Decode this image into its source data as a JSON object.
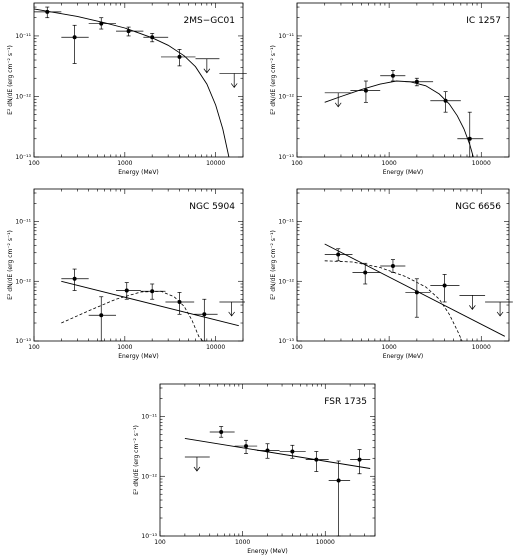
{
  "chart_data": [
    {
      "type": "scatter",
      "title": "2MS−GC01",
      "xlabel": "Energy (MeV)",
      "ylabel": "E² dN/dE (erg cm⁻² s⁻¹)",
      "xscale": "log",
      "yscale": "log",
      "xlim": [
        100,
        20000
      ],
      "ylim": [
        1e-13,
        3.5e-11
      ],
      "xticks": [
        "100",
        "1000",
        "10000"
      ],
      "yticks": [
        "10⁻¹¹",
        "10⁻¹²",
        "10⁻¹³"
      ],
      "points": [
        {
          "x": 140,
          "y": 2.5e-11,
          "xlo": 100,
          "xhi": 200,
          "ylo": 2e-11,
          "yhi": 3e-11
        },
        {
          "x": 280,
          "y": 9.5e-12,
          "xlo": 200,
          "xhi": 400,
          "ylo": 3.5e-12,
          "yhi": 1.5e-11
        },
        {
          "x": 550,
          "y": 1.6e-11,
          "xlo": 400,
          "xhi": 800,
          "ylo": 1.3e-11,
          "yhi": 2e-11
        },
        {
          "x": 1100,
          "y": 1.2e-11,
          "xlo": 800,
          "xhi": 1600,
          "ylo": 1e-11,
          "yhi": 1.4e-11
        },
        {
          "x": 2000,
          "y": 9.5e-12,
          "xlo": 1600,
          "xhi": 3000,
          "ylo": 8e-12,
          "yhi": 1.1e-11
        },
        {
          "x": 4000,
          "y": 4.5e-12,
          "xlo": 2500,
          "xhi": 6000,
          "ylo": 3.2e-12,
          "yhi": 6e-12
        }
      ],
      "upper_limits": [
        {
          "x": 8000,
          "y": 4.2e-12,
          "xlo": 6000,
          "xhi": 11000
        },
        {
          "x": 16000,
          "y": 2.4e-12,
          "xlo": 11000,
          "xhi": 22000
        }
      ],
      "model_solid": [
        [
          100,
          2.8e-11
        ],
        [
          300,
          2.1e-11
        ],
        [
          600,
          1.65e-11
        ],
        [
          1000,
          1.35e-11
        ],
        [
          2000,
          9.3e-12
        ],
        [
          3000,
          7e-12
        ],
        [
          4500,
          4.7e-12
        ],
        [
          6000,
          3.1e-12
        ],
        [
          8000,
          1.6e-12
        ],
        [
          10000,
          7.2e-13
        ],
        [
          12000,
          2.9e-13
        ],
        [
          14000,
          1e-13
        ]
      ],
      "model_dashed": []
    },
    {
      "type": "scatter",
      "title": "IC 1257",
      "xlabel": "Energy (MeV)",
      "ylabel": "E² dN/dE (erg cm⁻² s⁻¹)",
      "xscale": "log",
      "yscale": "log",
      "xlim": [
        100,
        20000
      ],
      "ylim": [
        1e-13,
        3.5e-11
      ],
      "xticks": [
        "100",
        "1000",
        "10000"
      ],
      "yticks": [
        "10⁻¹¹",
        "10⁻¹²",
        "10⁻¹³"
      ],
      "points": [
        {
          "x": 560,
          "y": 1.25e-12,
          "xlo": 380,
          "xhi": 800,
          "ylo": 8e-13,
          "yhi": 1.8e-12
        },
        {
          "x": 1100,
          "y": 2.2e-12,
          "xlo": 800,
          "xhi": 1500,
          "ylo": 1.8e-12,
          "yhi": 2.7e-12
        },
        {
          "x": 2000,
          "y": 1.75e-12,
          "xlo": 1500,
          "xhi": 3000,
          "ylo": 1.5e-12,
          "yhi": 2e-12
        },
        {
          "x": 4100,
          "y": 8.5e-13,
          "xlo": 2800,
          "xhi": 6000,
          "ylo": 5.5e-13,
          "yhi": 1.2e-12
        },
        {
          "x": 7500,
          "y": 2e-13,
          "xlo": 5500,
          "xhi": 10500,
          "ylo": 5e-14,
          "yhi": 5.5e-13
        }
      ],
      "upper_limits": [
        {
          "x": 280,
          "y": 1.15e-12,
          "xlo": 200,
          "xhi": 400
        }
      ],
      "model_solid": [
        [
          200,
          8e-13
        ],
        [
          300,
          1e-12
        ],
        [
          500,
          1.3e-12
        ],
        [
          800,
          1.6e-12
        ],
        [
          1200,
          1.8e-12
        ],
        [
          1700,
          1.75e-12
        ],
        [
          2500,
          1.5e-12
        ],
        [
          3500,
          1.1e-12
        ],
        [
          4500,
          7.5e-13
        ],
        [
          5500,
          4.8e-13
        ],
        [
          6500,
          2.9e-13
        ],
        [
          7500,
          1.6e-13
        ],
        [
          8200,
          1e-13
        ]
      ],
      "model_dashed": []
    },
    {
      "type": "scatter",
      "title": "NGC 5904",
      "xlabel": "Energy (MeV)",
      "ylabel": "E² dN/dE (erg cm⁻² s⁻¹)",
      "xscale": "log",
      "yscale": "log",
      "xlim": [
        100,
        20000
      ],
      "ylim": [
        1e-13,
        3.5e-11
      ],
      "xticks": [
        "100",
        "1000",
        "10000"
      ],
      "yticks": [
        "10⁻¹¹",
        "10⁻¹²",
        "10⁻¹³"
      ],
      "points": [
        {
          "x": 280,
          "y": 1.1e-12,
          "xlo": 200,
          "xhi": 400,
          "ylo": 7e-13,
          "yhi": 1.6e-12
        },
        {
          "x": 550,
          "y": 2.7e-13,
          "xlo": 400,
          "xhi": 800,
          "ylo": 1e-13,
          "yhi": 5.5e-13
        },
        {
          "x": 1050,
          "y": 7e-13,
          "xlo": 800,
          "xhi": 1500,
          "ylo": 5e-13,
          "yhi": 9.5e-13
        },
        {
          "x": 2000,
          "y": 6.8e-13,
          "xlo": 1500,
          "xhi": 2800,
          "ylo": 5e-13,
          "yhi": 9e-13
        },
        {
          "x": 4000,
          "y": 4.5e-13,
          "xlo": 2800,
          "xhi": 5800,
          "ylo": 2.8e-13,
          "yhi": 6.5e-13
        },
        {
          "x": 7500,
          "y": 2.8e-13,
          "xlo": 5800,
          "xhi": 10500,
          "ylo": 1e-13,
          "yhi": 5e-13
        }
      ],
      "upper_limits": [
        {
          "x": 15000,
          "y": 4.5e-13,
          "xlo": 11000,
          "xhi": 21000
        }
      ],
      "model_solid": [
        [
          200,
          1e-12
        ],
        [
          18000,
          1.8e-13
        ]
      ],
      "model_dashed": [
        [
          200,
          2e-13
        ],
        [
          400,
          3.2e-13
        ],
        [
          800,
          5e-13
        ],
        [
          1500,
          6.6e-13
        ],
        [
          2500,
          6.8e-13
        ],
        [
          3500,
          5.5e-13
        ],
        [
          4500,
          3.8e-13
        ],
        [
          5500,
          2.2e-13
        ],
        [
          6500,
          1.2e-13
        ],
        [
          7200,
          8e-14
        ]
      ]
    },
    {
      "type": "scatter",
      "title": "NGC 6656",
      "xlabel": "Energy (MeV)",
      "ylabel": "E² dN/dE (erg cm⁻² s⁻¹)",
      "xscale": "log",
      "yscale": "log",
      "xlim": [
        100,
        20000
      ],
      "ylim": [
        1e-13,
        3.5e-11
      ],
      "xticks": [
        "100",
        "1000",
        "10000"
      ],
      "yticks": [
        "10⁻¹¹",
        "10⁻¹²",
        "10⁻¹³"
      ],
      "points": [
        {
          "x": 280,
          "y": 2.8e-12,
          "xlo": 200,
          "xhi": 400,
          "ylo": 2.2e-12,
          "yhi": 3.5e-12
        },
        {
          "x": 550,
          "y": 1.4e-12,
          "xlo": 400,
          "xhi": 800,
          "ylo": 9e-13,
          "yhi": 2e-12
        },
        {
          "x": 1100,
          "y": 1.8e-12,
          "xlo": 800,
          "xhi": 1500,
          "ylo": 1.4e-12,
          "yhi": 2.3e-12
        },
        {
          "x": 2000,
          "y": 6.5e-13,
          "xlo": 1500,
          "xhi": 2800,
          "ylo": 2.5e-13,
          "yhi": 1.1e-12
        },
        {
          "x": 4000,
          "y": 8.5e-13,
          "xlo": 2800,
          "xhi": 5800,
          "ylo": 4.5e-13,
          "yhi": 1.3e-12
        }
      ],
      "upper_limits": [
        {
          "x": 8000,
          "y": 5.8e-13,
          "xlo": 5800,
          "xhi": 11000
        },
        {
          "x": 16000,
          "y": 4.5e-13,
          "xlo": 11000,
          "xhi": 22000
        }
      ],
      "model_solid": [
        [
          200,
          4.2e-12
        ],
        [
          18000,
          1.2e-13
        ]
      ],
      "model_dashed": [
        [
          200,
          2.2e-12
        ],
        [
          400,
          2.1e-12
        ],
        [
          800,
          1.7e-12
        ],
        [
          1500,
          1.2e-12
        ],
        [
          2500,
          8e-13
        ],
        [
          3500,
          5e-13
        ],
        [
          4500,
          2.8e-13
        ],
        [
          5500,
          1.5e-13
        ],
        [
          6200,
          9e-14
        ]
      ]
    },
    {
      "type": "scatter",
      "title": "FSR 1735",
      "xlabel": "Energy (MeV)",
      "ylabel": "E² dN/dE (erg cm⁻² s⁻¹)",
      "xscale": "log",
      "yscale": "log",
      "xlim": [
        100,
        40000
      ],
      "ylim": [
        1e-13,
        3.5e-11
      ],
      "xticks": [
        "100",
        "1000",
        "10000"
      ],
      "yticks": [
        "10⁻¹¹",
        "10⁻¹²",
        "10⁻¹³"
      ],
      "points": [
        {
          "x": 550,
          "y": 5.5e-12,
          "xlo": 400,
          "xhi": 800,
          "ylo": 4.5e-12,
          "yhi": 6.8e-12
        },
        {
          "x": 1100,
          "y": 3.2e-12,
          "xlo": 800,
          "xhi": 1500,
          "ylo": 2.4e-12,
          "yhi": 4e-12
        },
        {
          "x": 2000,
          "y": 2.7e-12,
          "xlo": 1500,
          "xhi": 2800,
          "ylo": 2e-12,
          "yhi": 3.5e-12
        },
        {
          "x": 4000,
          "y": 2.6e-12,
          "xlo": 2800,
          "xhi": 5800,
          "ylo": 2e-12,
          "yhi": 3.3e-12
        },
        {
          "x": 7800,
          "y": 1.9e-12,
          "xlo": 5800,
          "xhi": 11000,
          "ylo": 1.2e-12,
          "yhi": 2.6e-12
        },
        {
          "x": 14500,
          "y": 8.5e-13,
          "xlo": 11000,
          "xhi": 20000,
          "ylo": 1e-13,
          "yhi": 1.8e-12
        },
        {
          "x": 26000,
          "y": 1.9e-12,
          "xlo": 20000,
          "xhi": 35000,
          "ylo": 1.1e-12,
          "yhi": 2.8e-12
        }
      ],
      "upper_limits": [
        {
          "x": 280,
          "y": 2.1e-12,
          "xlo": 200,
          "xhi": 400
        }
      ],
      "model_solid": [
        [
          200,
          4.3e-12
        ],
        [
          35000,
          1.35e-12
        ]
      ],
      "model_dashed": []
    }
  ]
}
